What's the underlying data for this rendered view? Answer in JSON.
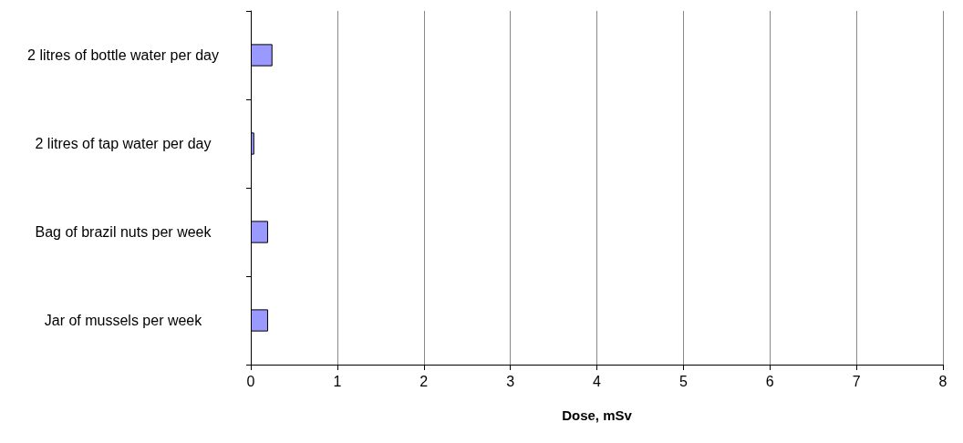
{
  "chart_data": {
    "type": "bar",
    "orientation": "horizontal",
    "categories": [
      "2 litres of bottle water per day",
      "2 litres of tap water per day",
      "Bag of brazil nuts per week",
      "Jar of mussels per week"
    ],
    "values": [
      0.25,
      0.04,
      0.2,
      0.2
    ],
    "color": "#9999ff",
    "xlabel": "Dose, mSv",
    "xlim": [
      0,
      8
    ],
    "xticks": [
      0,
      1,
      2,
      3,
      4,
      5,
      6,
      7,
      8
    ],
    "grid": "x"
  }
}
